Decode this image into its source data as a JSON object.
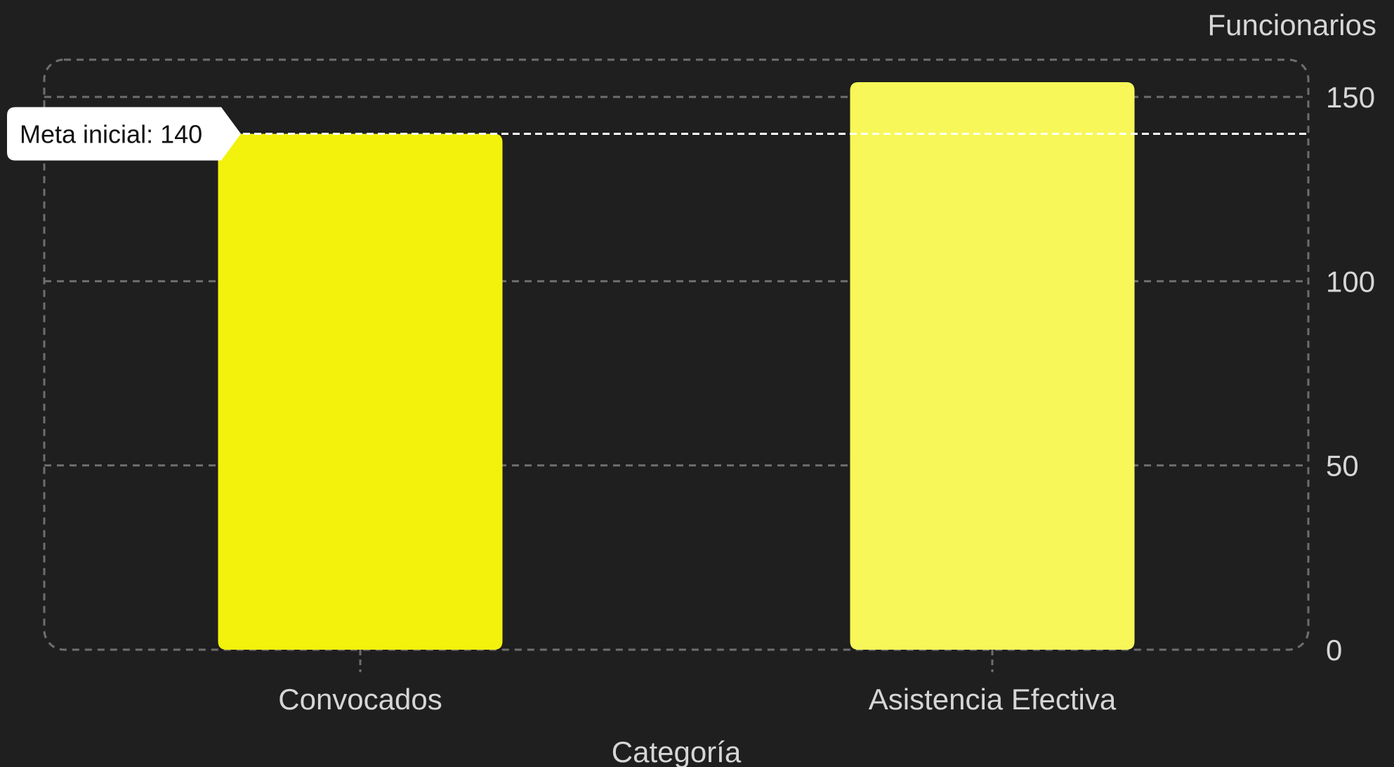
{
  "chart_data": {
    "type": "bar",
    "categories": [
      "Convocados",
      "Asistencia Efectiva"
    ],
    "values": [
      140,
      154
    ],
    "bar_colors": [
      "#f2f20d",
      "#f7f75a"
    ],
    "xlabel": "Categoría",
    "ylabel": "Funcionarios",
    "ylim": [
      0,
      160
    ],
    "yticks": [
      0,
      50,
      100,
      150
    ],
    "y_axis_side": "right",
    "grid": true,
    "reference_line": {
      "value": 140,
      "label": "Meta inicial: 140"
    }
  },
  "colors": {
    "background": "#1f1f1f",
    "grid": "#6e6e6e",
    "text": "#d6d6d6",
    "reference_line": "#ffffff"
  }
}
